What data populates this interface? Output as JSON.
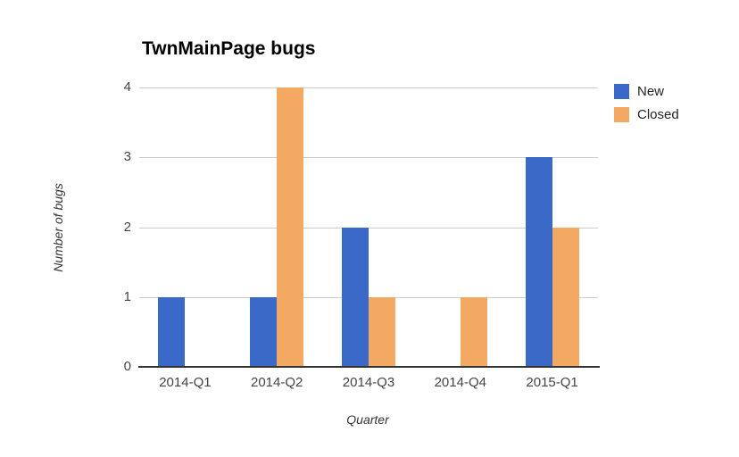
{
  "title": "TwnMainPage bugs",
  "chart_data": {
    "type": "bar",
    "title": "TwnMainPage bugs",
    "xlabel": "Quarter",
    "ylabel": "Number of bugs",
    "categories": [
      "2014-Q1",
      "2014-Q2",
      "2014-Q3",
      "2014-Q4",
      "2015-Q1"
    ],
    "series": [
      {
        "name": "New",
        "color": "#3b69c8",
        "values": [
          1,
          1,
          2,
          0,
          3
        ]
      },
      {
        "name": "Closed",
        "color": "#f3a962",
        "values": [
          0,
          4,
          1,
          1,
          2
        ]
      }
    ],
    "ylim": [
      0,
      4
    ],
    "yticks": [
      0,
      1,
      2,
      3,
      4
    ],
    "grid": true,
    "legend_position": "top-right",
    "colors": {
      "gridline": "#cccccc",
      "axis_line": "#333333",
      "tick_text": "#444444"
    }
  }
}
